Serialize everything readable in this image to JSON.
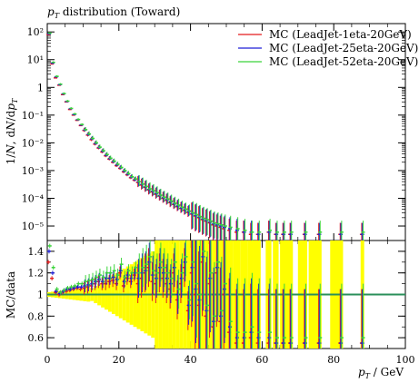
{
  "chart_data": [
    {
      "type": "scatter",
      "title": "p_T distribution (Toward)",
      "xlabel": "p_T / GeV",
      "ylabel": "1/N dN/dp_T",
      "xlim": [
        0,
        100
      ],
      "ylim": [
        3e-06,
        200
      ],
      "yscale": "log",
      "legend_position": "top-right",
      "xticks": [
        "0",
        "20",
        "40",
        "60",
        "80",
        "100"
      ],
      "yticks": [
        "10⁻⁵",
        "10⁻⁴",
        "10⁻³",
        "10⁻²",
        "10⁻¹",
        "1",
        "10¹",
        "10²"
      ],
      "series": [
        {
          "name": "MC (LeadJet-1eta-20GeV)",
          "color": "#e41a1c",
          "x": [
            0.5,
            1.5,
            2.5,
            3.5,
            4.5,
            5.5,
            6.5,
            7.5,
            8.5,
            9.5,
            10.5,
            11.5,
            12.5,
            13.5,
            14.5,
            15.5,
            16.5,
            17.5,
            18.5,
            19.5,
            20.5,
            21.5,
            22.5,
            23.5,
            24.5,
            25.5,
            26.5,
            27.5,
            28.5,
            29.5,
            30.5,
            31.5,
            32.5,
            33.5,
            34.5,
            35.5,
            36.5,
            37.5,
            38.5,
            39.5,
            40.5,
            41.5,
            42.5,
            43.5,
            44.5,
            45.5,
            46.5,
            47.5,
            48.5,
            49.5,
            51,
            53,
            55,
            57,
            59,
            62,
            64,
            66,
            68,
            72,
            76,
            82,
            88
          ],
          "y": [
            80,
            7,
            2.2,
            1.2,
            0.55,
            0.3,
            0.16,
            0.1,
            0.065,
            0.042,
            0.028,
            0.019,
            0.013,
            0.009,
            0.0065,
            0.0047,
            0.0034,
            0.0026,
            0.002,
            0.0015,
            0.0012,
            0.0009,
            0.0007,
            0.00055,
            0.00045,
            0.00037,
            0.0003,
            0.00025,
            0.0002,
            0.00017,
            0.00014,
            0.00012,
            0.0001,
            8.5e-05,
            7e-05,
            6e-05,
            5e-05,
            4.3e-05,
            3.7e-05,
            3.1e-05,
            2.7e-05,
            2.3e-05,
            2e-05,
            1.7e-05,
            1.5e-05,
            1.3e-05,
            1.1e-05,
            1e-05,
            9e-06,
            8e-06,
            7e-06,
            6e-06,
            6e-06,
            5e-06,
            5e-06,
            6e-06,
            5e-06,
            5e-06,
            5e-06,
            5e-06,
            5e-06,
            5e-06,
            5e-06
          ]
        },
        {
          "name": "MC (LeadJet-25eta-20GeV)",
          "color": "#1f1fd6",
          "x": [
            0.5,
            1.5,
            2.5,
            3.5,
            4.5,
            5.5,
            6.5,
            7.5,
            8.5,
            9.5,
            10.5,
            11.5,
            12.5,
            13.5,
            14.5,
            15.5,
            16.5,
            17.5,
            18.5,
            19.5,
            20.5,
            21.5,
            22.5,
            23.5,
            24.5,
            25.5,
            26.5,
            27.5,
            28.5,
            29.5,
            30.5,
            31.5,
            32.5,
            33.5,
            34.5,
            35.5,
            36.5,
            37.5,
            38.5,
            39.5,
            40.5,
            41.5,
            42.5,
            43.5,
            44.5,
            45.5,
            46.5,
            47.5,
            48.5,
            49.5,
            51,
            53,
            55,
            57,
            59,
            62,
            64,
            66,
            68,
            72,
            76,
            82,
            88
          ],
          "y": [
            85,
            7.5,
            2.4,
            1.25,
            0.58,
            0.31,
            0.17,
            0.105,
            0.068,
            0.044,
            0.029,
            0.02,
            0.014,
            0.0095,
            0.0068,
            0.005,
            0.0036,
            0.0027,
            0.0021,
            0.0016,
            0.00125,
            0.00095,
            0.00074,
            0.00058,
            0.00047,
            0.00039,
            0.00032,
            0.00026,
            0.00021,
            0.00018,
            0.00015,
            0.000125,
            0.000105,
            9e-05,
            7.5e-05,
            6.3e-05,
            5.3e-05,
            4.5e-05,
            3.9e-05,
            3.3e-05,
            2.8e-05,
            2.4e-05,
            2.1e-05,
            1.8e-05,
            1.6e-05,
            1.4e-05,
            1.2e-05,
            1.1e-05,
            1e-05,
            9e-06,
            8e-06,
            7e-06,
            6e-06,
            6e-06,
            5e-06,
            6e-06,
            5e-06,
            5e-06,
            5e-06,
            5e-06,
            5e-06,
            5e-06,
            5e-06
          ]
        },
        {
          "name": "MC (LeadJet-52eta-20GeV)",
          "color": "#3bd43b",
          "x": [
            0.5,
            1.5,
            2.5,
            3.5,
            4.5,
            5.5,
            6.5,
            7.5,
            8.5,
            9.5,
            10.5,
            11.5,
            12.5,
            13.5,
            14.5,
            15.5,
            16.5,
            17.5,
            18.5,
            19.5,
            20.5,
            21.5,
            22.5,
            23.5,
            24.5,
            25.5,
            26.5,
            27.5,
            28.5,
            29.5,
            30.5,
            31.5,
            32.5,
            33.5,
            34.5,
            35.5,
            36.5,
            37.5,
            38.5,
            39.5,
            40.5,
            41.5,
            42.5,
            43.5,
            44.5,
            45.5,
            46.5,
            47.5,
            48.5,
            49.5,
            51,
            53,
            55,
            57,
            59,
            62,
            64,
            66,
            68,
            72,
            76,
            82,
            88
          ],
          "y": [
            90,
            8,
            2.5,
            1.3,
            0.6,
            0.32,
            0.175,
            0.11,
            0.07,
            0.046,
            0.03,
            0.021,
            0.0145,
            0.01,
            0.007,
            0.0052,
            0.0038,
            0.0028,
            0.0022,
            0.0017,
            0.0013,
            0.001,
            0.00078,
            0.0006,
            0.0005,
            0.0004,
            0.00033,
            0.00027,
            0.00022,
            0.00019,
            0.00016,
            0.00013,
            0.00011,
            9.5e-05,
            8e-05,
            6.7e-05,
            5.7e-05,
            4.8e-05,
            4.1e-05,
            3.5e-05,
            3e-05,
            2.6e-05,
            2.2e-05,
            1.9e-05,
            1.7e-05,
            1.5e-05,
            1.3e-05,
            1.2e-05,
            1.1e-05,
            1e-05,
            9e-06,
            8e-06,
            7e-06,
            6e-06,
            6e-06,
            7e-06,
            6e-06,
            6e-06,
            6e-06,
            6e-06,
            6e-06,
            6e-06,
            6e-06
          ]
        }
      ]
    },
    {
      "type": "scatter",
      "xlabel": "p_T / GeV",
      "ylabel": "MC/data",
      "xlim": [
        0,
        100
      ],
      "ylim": [
        0.5,
        1.5
      ],
      "yticks": [
        "0.6",
        "0.8",
        "1",
        "1.2",
        "1.4"
      ],
      "xticks": [
        "0",
        "20",
        "40",
        "60",
        "80",
        "100"
      ],
      "reference_line": 1,
      "series": [
        {
          "name": "MC (LeadJet-1eta-20GeV)",
          "color": "#e41a1c",
          "x": [
            0.5,
            1.5,
            2.5,
            3.5,
            4.5,
            5.5,
            6.5,
            7.5,
            8.5,
            9.5,
            10.5,
            11.5,
            12.5,
            13.5,
            14.5,
            15.5,
            16.5,
            17.5,
            18.5,
            19.5,
            20.5,
            21.5,
            22.5,
            23.5,
            24.5,
            25.5,
            26.5,
            27.5,
            28.5,
            29.5,
            30.5,
            31.5,
            32.5,
            33.5,
            34.5,
            35.5,
            36.5,
            37.5,
            38.5,
            39.5,
            40.5,
            41.5,
            42.5,
            43.5,
            44.5,
            45.5,
            46.5,
            47.5,
            48.5,
            49.5,
            51,
            53,
            55,
            57,
            59,
            62,
            64,
            66,
            68,
            72,
            76,
            82,
            88
          ],
          "y": [
            1.3,
            1.15,
            1.02,
            1.0,
            1.02,
            1.03,
            1.04,
            1.05,
            1.06,
            1.05,
            1.06,
            1.07,
            1.08,
            1.1,
            1.12,
            1.1,
            1.1,
            1.12,
            1.13,
            1.1,
            1.2,
            1.08,
            1.15,
            1.12,
            1.18,
            1.1,
            1.15,
            1.2,
            1.25,
            1.12,
            1.1,
            1.2,
            1.15,
            1.1,
            1.05,
            1.2,
            0.95,
            1.1,
            1.25,
            0.85,
            1.2,
            1.0,
            0.9,
            1.3,
            0.8,
            1.1,
            0.7,
            1.2,
            0.75,
            1.0,
            0.65,
            0.55,
            0.55,
            0.6,
            0.55,
            0.55,
            0.55,
            0.55,
            0.55,
            0.55,
            0.55,
            0.55,
            0.55
          ]
        },
        {
          "name": "MC (LeadJet-25eta-20GeV)",
          "color": "#1f1fd6",
          "x": [
            0.5,
            1.5,
            2.5,
            3.5,
            4.5,
            5.5,
            6.5,
            7.5,
            8.5,
            9.5,
            10.5,
            11.5,
            12.5,
            13.5,
            14.5,
            15.5,
            16.5,
            17.5,
            18.5,
            19.5,
            20.5,
            21.5,
            22.5,
            23.5,
            24.5,
            25.5,
            26.5,
            27.5,
            28.5,
            29.5,
            30.5,
            31.5,
            32.5,
            33.5,
            34.5,
            35.5,
            36.5,
            37.5,
            38.5,
            39.5,
            40.5,
            41.5,
            42.5,
            43.5,
            44.5,
            45.5,
            46.5,
            47.5,
            48.5,
            49.5,
            51,
            53,
            55,
            57,
            59,
            62,
            64,
            66,
            68,
            72,
            76,
            82,
            88
          ],
          "y": [
            1.4,
            1.2,
            1.03,
            1.01,
            1.03,
            1.05,
            1.05,
            1.06,
            1.07,
            1.07,
            1.08,
            1.09,
            1.1,
            1.12,
            1.14,
            1.12,
            1.15,
            1.15,
            1.16,
            1.14,
            1.22,
            1.12,
            1.18,
            1.15,
            1.2,
            1.15,
            1.2,
            1.22,
            1.3,
            1.18,
            1.15,
            1.25,
            1.2,
            1.15,
            1.1,
            1.25,
            1.0,
            1.15,
            1.3,
            0.9,
            1.25,
            1.05,
            0.95,
            1.35,
            0.85,
            1.15,
            0.75,
            1.25,
            0.8,
            1.05,
            0.7,
            0.6,
            0.6,
            0.65,
            0.6,
            0.6,
            0.55,
            0.55,
            0.55,
            0.55,
            0.55,
            0.55,
            0.55
          ]
        },
        {
          "name": "MC (LeadJet-52eta-20GeV)",
          "color": "#3bd43b",
          "x": [
            0.5,
            1.5,
            2.5,
            3.5,
            4.5,
            5.5,
            6.5,
            7.5,
            8.5,
            9.5,
            10.5,
            11.5,
            12.5,
            13.5,
            14.5,
            15.5,
            16.5,
            17.5,
            18.5,
            19.5,
            20.5,
            21.5,
            22.5,
            23.5,
            24.5,
            25.5,
            26.5,
            27.5,
            28.5,
            29.5,
            30.5,
            31.5,
            32.5,
            33.5,
            34.5,
            35.5,
            36.5,
            37.5,
            38.5,
            39.5,
            40.5,
            41.5,
            42.5,
            43.5,
            44.5,
            45.5,
            46.5,
            47.5,
            48.5,
            49.5,
            51,
            53,
            55,
            57,
            59,
            62,
            64,
            66,
            68,
            72,
            76,
            82,
            88
          ],
          "y": [
            1.45,
            1.25,
            1.05,
            1.02,
            1.04,
            1.06,
            1.07,
            1.08,
            1.1,
            1.1,
            1.12,
            1.13,
            1.14,
            1.16,
            1.18,
            1.16,
            1.2,
            1.2,
            1.22,
            1.18,
            1.28,
            1.16,
            1.22,
            1.2,
            1.25,
            1.2,
            1.25,
            1.28,
            1.35,
            1.22,
            1.2,
            1.3,
            1.25,
            1.2,
            1.15,
            1.3,
            1.05,
            1.2,
            1.35,
            0.95,
            1.3,
            1.1,
            1.0,
            1.4,
            0.9,
            1.2,
            0.8,
            1.3,
            0.85,
            1.1,
            0.75,
            0.65,
            0.65,
            0.7,
            0.65,
            0.65,
            0.6,
            0.6,
            0.6,
            0.6,
            0.6,
            0.6,
            0.6
          ]
        }
      ]
    }
  ]
}
